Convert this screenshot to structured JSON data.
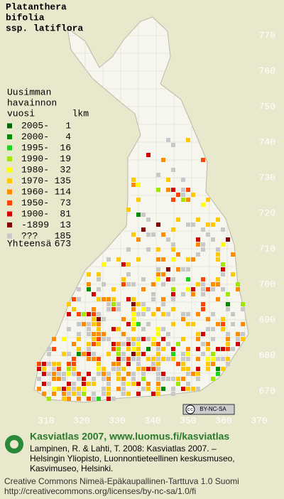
{
  "title_lines": [
    "Platanthera",
    "bifolia",
    "ssp. latiflora"
  ],
  "legend": {
    "header_lines": [
      "Uusimman",
      "havainnon"
    ],
    "year_header": "vuosi",
    "count_header": "lkm",
    "entries": [
      {
        "label": "2005-",
        "count": 1,
        "color": "#006400"
      },
      {
        "label": "2000-",
        "count": 4,
        "color": "#008c00"
      },
      {
        "label": "1995-",
        "count": 16,
        "color": "#1ed21e"
      },
      {
        "label": "1990-",
        "count": 19,
        "color": "#a0e600"
      },
      {
        "label": "1980-",
        "count": 32,
        "color": "#ffff00"
      },
      {
        "label": "1970-",
        "count": 135,
        "color": "#ffc800"
      },
      {
        "label": "1960-",
        "count": 114,
        "color": "#ff8c00"
      },
      {
        "label": "1950-",
        "count": 73,
        "color": "#ff4600"
      },
      {
        "label": "1900-",
        "count": 81,
        "color": "#d20000"
      },
      {
        "label": "-1899",
        "count": 13,
        "color": "#820000"
      },
      {
        "label": "???",
        "count": 185,
        "color": "#c8c8c8"
      }
    ],
    "total_label": "Yhteensä",
    "total": 673
  },
  "y_labels": [
    770,
    760,
    750,
    740,
    730,
    720,
    710,
    700,
    690,
    680,
    670
  ],
  "x_labels": [
    310,
    320,
    330,
    340,
    350,
    360,
    370
  ],
  "badge": {
    "symbol": "cc",
    "text": "BY-NC-SA"
  },
  "footer": {
    "heading": "Kasviatlas 2007, www.luomus.fi/kasviatlas",
    "citation_lines": [
      "Lampinen, R. & Lahti, T. 2008: Kasviatlas 2007. –",
      "Helsingin Yliopisto, Luonnontieteellinen keskusmuseo,",
      "Kasvimuseo, Helsinki."
    ],
    "license_lines": [
      "Creative Commons Nimeä-Epäkaupallinen-Tarttuva 1.0 Suomi",
      "http://creativecommons.org/licenses/by-nc-sa/1.0/fi"
    ]
  }
}
